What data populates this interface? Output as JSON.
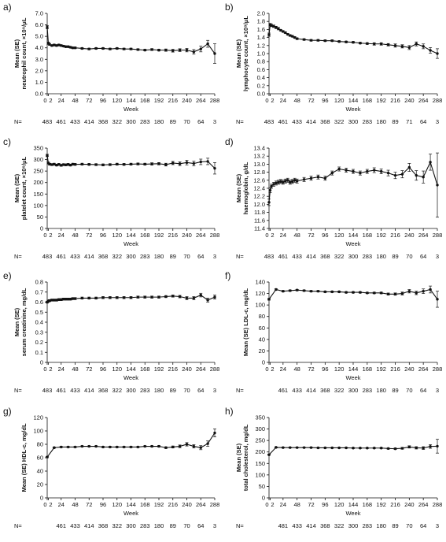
{
  "week_label": "Week",
  "n_label": "N=",
  "chart_data": [
    {
      "panel": "a)",
      "type": "line",
      "ylabel": [
        "Mean (SE)",
        "neutrophil count, ×10⁹/μL"
      ],
      "ylim": [
        0.0,
        7.0
      ],
      "yticks": [
        "0.0",
        "1.0",
        "2.0",
        "3.0",
        "4.0",
        "5.0",
        "6.0",
        "7.0"
      ],
      "xticks": [
        "0",
        "2",
        "24",
        "48",
        "72",
        "96",
        "120",
        "144",
        "168",
        "192",
        "216",
        "240",
        "264",
        "288"
      ],
      "xlim": [
        0,
        288
      ],
      "x": [
        0,
        2,
        4,
        8,
        12,
        16,
        20,
        24,
        28,
        32,
        36,
        40,
        44,
        48,
        60,
        72,
        84,
        96,
        108,
        120,
        132,
        144,
        156,
        168,
        180,
        192,
        204,
        216,
        228,
        240,
        252,
        264,
        276,
        288
      ],
      "y": [
        5.8,
        4.4,
        4.3,
        4.2,
        4.25,
        4.2,
        4.25,
        4.2,
        4.15,
        4.1,
        4.1,
        4.05,
        4.0,
        4.0,
        3.95,
        3.9,
        3.95,
        3.95,
        3.9,
        3.95,
        3.9,
        3.9,
        3.85,
        3.8,
        3.85,
        3.8,
        3.8,
        3.75,
        3.8,
        3.8,
        3.65,
        3.9,
        4.35,
        3.5
      ],
      "se": [
        0.15,
        0.1,
        0.08,
        0.07,
        0.07,
        0.07,
        0.07,
        0.07,
        0.07,
        0.07,
        0.07,
        0.07,
        0.07,
        0.07,
        0.07,
        0.07,
        0.07,
        0.07,
        0.07,
        0.07,
        0.07,
        0.07,
        0.07,
        0.07,
        0.08,
        0.08,
        0.1,
        0.12,
        0.12,
        0.15,
        0.2,
        0.25,
        0.3,
        0.85
      ],
      "n_ticks": [
        0,
        24,
        48,
        72,
        96,
        120,
        144,
        168,
        192,
        216,
        240,
        264,
        288
      ],
      "n_values": [
        "483",
        "461",
        "433",
        "414",
        "368",
        "322",
        "300",
        "283",
        "180",
        "89",
        "70",
        "64",
        "3"
      ]
    },
    {
      "panel": "b)",
      "type": "line",
      "ylabel": [
        "Mean (SE)",
        "lymphocyte count, ×10⁹/μL"
      ],
      "ylim": [
        0.0,
        2.0
      ],
      "yticks": [
        "0.0",
        "0.2",
        "0.4",
        "0.6",
        "0.8",
        "1.0",
        "1.2",
        "1.4",
        "1.6",
        "1.8",
        "2.0"
      ],
      "xticks": [
        "0",
        "2",
        "24",
        "48",
        "72",
        "96",
        "120",
        "144",
        "168",
        "192",
        "216",
        "240",
        "264",
        "288"
      ],
      "xlim": [
        0,
        288
      ],
      "x": [
        0,
        2,
        4,
        8,
        12,
        16,
        20,
        24,
        28,
        32,
        36,
        40,
        44,
        48,
        60,
        72,
        84,
        96,
        108,
        120,
        132,
        144,
        156,
        168,
        180,
        192,
        204,
        216,
        228,
        240,
        252,
        264,
        276,
        288
      ],
      "y": [
        1.47,
        1.72,
        1.7,
        1.68,
        1.65,
        1.62,
        1.58,
        1.55,
        1.52,
        1.48,
        1.45,
        1.43,
        1.4,
        1.37,
        1.35,
        1.33,
        1.33,
        1.32,
        1.32,
        1.3,
        1.29,
        1.28,
        1.26,
        1.25,
        1.24,
        1.24,
        1.22,
        1.2,
        1.18,
        1.15,
        1.24,
        1.18,
        1.08,
        1.0
      ],
      "se": [
        0.04,
        0.03,
        0.03,
        0.03,
        0.03,
        0.03,
        0.02,
        0.02,
        0.02,
        0.02,
        0.02,
        0.02,
        0.02,
        0.02,
        0.02,
        0.02,
        0.02,
        0.02,
        0.02,
        0.02,
        0.02,
        0.02,
        0.02,
        0.02,
        0.03,
        0.03,
        0.03,
        0.04,
        0.04,
        0.05,
        0.05,
        0.06,
        0.07,
        0.12
      ],
      "n_ticks": [
        0,
        24,
        48,
        72,
        96,
        120,
        144,
        168,
        192,
        216,
        240,
        264,
        288
      ],
      "n_values": [
        "483",
        "461",
        "433",
        "414",
        "368",
        "322",
        "300",
        "283",
        "180",
        "89",
        "71",
        "64",
        "3"
      ]
    },
    {
      "panel": "c)",
      "type": "line",
      "ylabel": [
        "Mean (SE)",
        "platelet count, ×10⁹/μL"
      ],
      "ylim": [
        0,
        350
      ],
      "yticks": [
        "0",
        "50",
        "100",
        "150",
        "200",
        "250",
        "300",
        "350"
      ],
      "xticks": [
        "0",
        "2",
        "24",
        "48",
        "72",
        "96",
        "120",
        "144",
        "168",
        "192",
        "216",
        "240",
        "264",
        "288"
      ],
      "xlim": [
        0,
        288
      ],
      "x": [
        0,
        2,
        4,
        8,
        12,
        16,
        20,
        24,
        28,
        32,
        36,
        40,
        44,
        48,
        60,
        72,
        84,
        96,
        108,
        120,
        132,
        144,
        156,
        168,
        180,
        192,
        204,
        216,
        228,
        240,
        252,
        264,
        276,
        288
      ],
      "y": [
        318,
        285,
        280,
        278,
        280,
        276,
        279,
        275,
        278,
        277,
        279,
        276,
        280,
        279,
        280,
        279,
        278,
        277,
        278,
        280,
        279,
        280,
        281,
        280,
        281,
        282,
        278,
        285,
        282,
        287,
        283,
        290,
        292,
        262
      ],
      "se": [
        5,
        4,
        4,
        4,
        4,
        4,
        4,
        4,
        4,
        4,
        4,
        4,
        4,
        4,
        4,
        4,
        4,
        4,
        4,
        4,
        4,
        4,
        4,
        4,
        5,
        5,
        6,
        7,
        8,
        10,
        10,
        12,
        14,
        25
      ],
      "n_ticks": [
        0,
        24,
        48,
        72,
        96,
        120,
        144,
        168,
        192,
        216,
        240,
        264,
        288
      ],
      "n_values": [
        "483",
        "461",
        "433",
        "414",
        "368",
        "322",
        "300",
        "283",
        "180",
        "89",
        "70",
        "64",
        "3"
      ]
    },
    {
      "panel": "d)",
      "type": "line",
      "ylabel": [
        "Mean (SE)",
        "haemoglobin, g/dL"
      ],
      "ylim": [
        11.4,
        13.4
      ],
      "yticks": [
        "11.4",
        "11.6",
        "11.8",
        "12.0",
        "12.2",
        "12.4",
        "12.6",
        "12.8",
        "13.0",
        "13.2",
        "13.4"
      ],
      "xticks": [
        "0",
        "2",
        "24",
        "48",
        "72",
        "96",
        "120",
        "144",
        "168",
        "192",
        "216",
        "240",
        "264",
        "288"
      ],
      "xlim": [
        0,
        288
      ],
      "x": [
        0,
        2,
        4,
        8,
        12,
        16,
        20,
        24,
        28,
        32,
        36,
        40,
        44,
        48,
        60,
        72,
        84,
        96,
        108,
        120,
        132,
        144,
        156,
        168,
        180,
        192,
        204,
        216,
        228,
        240,
        252,
        264,
        276,
        288
      ],
      "y": [
        12.05,
        12.35,
        12.45,
        12.5,
        12.53,
        12.55,
        12.57,
        12.55,
        12.58,
        12.6,
        12.55,
        12.57,
        12.6,
        12.58,
        12.62,
        12.65,
        12.68,
        12.65,
        12.78,
        12.88,
        12.85,
        12.82,
        12.78,
        12.82,
        12.85,
        12.82,
        12.78,
        12.72,
        12.75,
        12.92,
        12.72,
        12.68,
        13.05,
        12.48
      ],
      "se": [
        0.08,
        0.06,
        0.05,
        0.05,
        0.05,
        0.05,
        0.05,
        0.05,
        0.05,
        0.05,
        0.05,
        0.05,
        0.05,
        0.05,
        0.05,
        0.05,
        0.05,
        0.05,
        0.05,
        0.05,
        0.05,
        0.05,
        0.05,
        0.05,
        0.06,
        0.06,
        0.07,
        0.08,
        0.09,
        0.1,
        0.12,
        0.15,
        0.2,
        0.8
      ],
      "n_ticks": [
        0,
        24,
        48,
        72,
        96,
        120,
        144,
        168,
        192,
        216,
        240,
        264,
        288
      ],
      "n_values": [
        "483",
        "461",
        "433",
        "414",
        "368",
        "322",
        "300",
        "283",
        "180",
        "89",
        "70",
        "64",
        "3"
      ]
    },
    {
      "panel": "e)",
      "type": "line",
      "ylabel": [
        "Mean (SE)",
        "serum creatinine, mg/dL"
      ],
      "ylim": [
        0.0,
        0.8
      ],
      "yticks": [
        "0",
        "0.1",
        "0.2",
        "0.3",
        "0.4",
        "0.5",
        "0.6",
        "0.7",
        "0.8"
      ],
      "xticks": [
        "0",
        "2",
        "24",
        "48",
        "72",
        "96",
        "120",
        "144",
        "168",
        "192",
        "216",
        "240",
        "264",
        "288"
      ],
      "xlim": [
        0,
        288
      ],
      "x": [
        0,
        2,
        4,
        8,
        12,
        16,
        20,
        24,
        28,
        32,
        36,
        40,
        44,
        48,
        60,
        72,
        84,
        96,
        108,
        120,
        132,
        144,
        156,
        168,
        180,
        192,
        204,
        216,
        228,
        240,
        252,
        264,
        276,
        288
      ],
      "y": [
        0.6,
        0.61,
        0.615,
        0.62,
        0.62,
        0.62,
        0.625,
        0.625,
        0.63,
        0.63,
        0.63,
        0.63,
        0.635,
        0.635,
        0.64,
        0.64,
        0.64,
        0.645,
        0.645,
        0.645,
        0.645,
        0.645,
        0.65,
        0.65,
        0.65,
        0.65,
        0.655,
        0.66,
        0.655,
        0.64,
        0.64,
        0.67,
        0.62,
        0.65
      ],
      "se": [
        0.01,
        0.01,
        0.01,
        0.01,
        0.01,
        0.01,
        0.01,
        0.01,
        0.01,
        0.01,
        0.01,
        0.01,
        0.01,
        0.01,
        0.01,
        0.01,
        0.01,
        0.01,
        0.01,
        0.01,
        0.01,
        0.01,
        0.01,
        0.01,
        0.01,
        0.01,
        0.01,
        0.01,
        0.012,
        0.015,
        0.015,
        0.018,
        0.02,
        0.02
      ],
      "n_ticks": [
        0,
        24,
        48,
        72,
        96,
        120,
        144,
        168,
        192,
        216,
        240,
        264,
        288
      ],
      "n_values": [
        "483",
        "461",
        "433",
        "414",
        "368",
        "322",
        "300",
        "283",
        "180",
        "89",
        "70",
        "64",
        "3"
      ]
    },
    {
      "panel": "f)",
      "type": "line",
      "ylabel": [
        "Mean (SE) LDL-c, mg/dL"
      ],
      "ylim": [
        0,
        140
      ],
      "yticks": [
        "0",
        "20",
        "40",
        "60",
        "80",
        "100",
        "120",
        "140"
      ],
      "xticks": [
        "0",
        "2",
        "24",
        "48",
        "72",
        "96",
        "120",
        "144",
        "168",
        "192",
        "216",
        "240",
        "264",
        "288"
      ],
      "xlim": [
        0,
        288
      ],
      "x": [
        0,
        12,
        24,
        36,
        48,
        60,
        72,
        84,
        96,
        108,
        120,
        132,
        144,
        156,
        168,
        180,
        192,
        204,
        216,
        228,
        240,
        252,
        264,
        276,
        288
      ],
      "y": [
        110,
        127,
        124,
        125,
        126,
        125,
        124,
        124,
        123,
        123,
        123,
        122,
        122,
        122,
        121,
        121,
        121,
        119,
        119,
        120,
        124,
        121,
        124,
        127,
        110
      ],
      "se": [
        1.5,
        1.2,
        1.2,
        1.2,
        1.2,
        1.2,
        1.2,
        1.2,
        1.2,
        1.2,
        1.2,
        1.2,
        1.2,
        1.2,
        1.2,
        1.3,
        1.4,
        1.8,
        2,
        2.5,
        3,
        3,
        4,
        6,
        14
      ],
      "n_ticks": [
        24,
        48,
        72,
        96,
        120,
        144,
        168,
        192,
        216,
        240,
        264,
        288
      ],
      "n_values": [
        "461",
        "433",
        "414",
        "368",
        "322",
        "300",
        "283",
        "180",
        "89",
        "70",
        "64",
        "3"
      ]
    },
    {
      "panel": "g)",
      "type": "line",
      "ylabel": [
        "Mean (SE) HDL-c, mg/dL"
      ],
      "ylim": [
        0,
        120
      ],
      "yticks": [
        "0",
        "20",
        "40",
        "60",
        "80",
        "100",
        "120"
      ],
      "xticks": [
        "0",
        "2",
        "24",
        "48",
        "72",
        "96",
        "120",
        "144",
        "168",
        "192",
        "216",
        "240",
        "264",
        "288"
      ],
      "xlim": [
        0,
        288
      ],
      "x": [
        0,
        12,
        24,
        36,
        48,
        60,
        72,
        84,
        96,
        108,
        120,
        132,
        144,
        156,
        168,
        180,
        192,
        204,
        216,
        228,
        240,
        252,
        264,
        276,
        288
      ],
      "y": [
        61,
        75,
        76,
        76,
        76,
        77,
        77,
        77,
        76,
        76,
        76,
        76,
        76,
        76,
        77,
        77,
        77,
        75,
        76,
        77,
        80,
        77,
        75,
        81,
        97
      ],
      "se": [
        1,
        0.8,
        0.8,
        0.8,
        0.8,
        0.8,
        0.8,
        0.8,
        0.8,
        0.8,
        0.8,
        0.8,
        0.8,
        0.8,
        0.8,
        0.9,
        1,
        1.2,
        1.5,
        2,
        2.5,
        2.5,
        3,
        4,
        6
      ],
      "n_ticks": [
        24,
        48,
        72,
        96,
        120,
        144,
        168,
        192,
        216,
        240,
        264,
        288
      ],
      "n_values": [
        "461",
        "433",
        "414",
        "368",
        "322",
        "300",
        "283",
        "180",
        "89",
        "70",
        "64",
        "3"
      ]
    },
    {
      "panel": "h)",
      "type": "line",
      "ylabel": [
        "Mean (SE)",
        "total cholesterol, mg/dL"
      ],
      "ylim": [
        0,
        350
      ],
      "yticks": [
        "0",
        "50",
        "100",
        "150",
        "200",
        "250",
        "300",
        "350"
      ],
      "xticks": [
        "0",
        "2",
        "24",
        "48",
        "72",
        "96",
        "120",
        "144",
        "168",
        "192",
        "216",
        "240",
        "264",
        "288"
      ],
      "xlim": [
        0,
        288
      ],
      "x": [
        0,
        12,
        24,
        36,
        48,
        60,
        72,
        84,
        96,
        108,
        120,
        132,
        144,
        156,
        168,
        180,
        192,
        204,
        216,
        228,
        240,
        252,
        264,
        276,
        288
      ],
      "y": [
        188,
        220,
        219,
        219,
        219,
        219,
        219,
        218,
        218,
        218,
        218,
        218,
        217,
        217,
        217,
        217,
        217,
        215,
        214,
        216,
        222,
        218,
        217,
        224,
        225
      ],
      "se": [
        2,
        1.8,
        1.8,
        1.8,
        1.8,
        1.8,
        1.8,
        1.8,
        1.8,
        1.8,
        1.8,
        1.8,
        1.8,
        1.8,
        1.8,
        1.9,
        2,
        2.5,
        3,
        4,
        5,
        5,
        6,
        8,
        30
      ],
      "n_ticks": [
        24,
        48,
        72,
        96,
        120,
        144,
        168,
        192,
        216,
        240,
        264,
        288
      ],
      "n_values": [
        "481",
        "433",
        "414",
        "368",
        "322",
        "300",
        "283",
        "180",
        "89",
        "70",
        "64",
        "3"
      ]
    }
  ]
}
